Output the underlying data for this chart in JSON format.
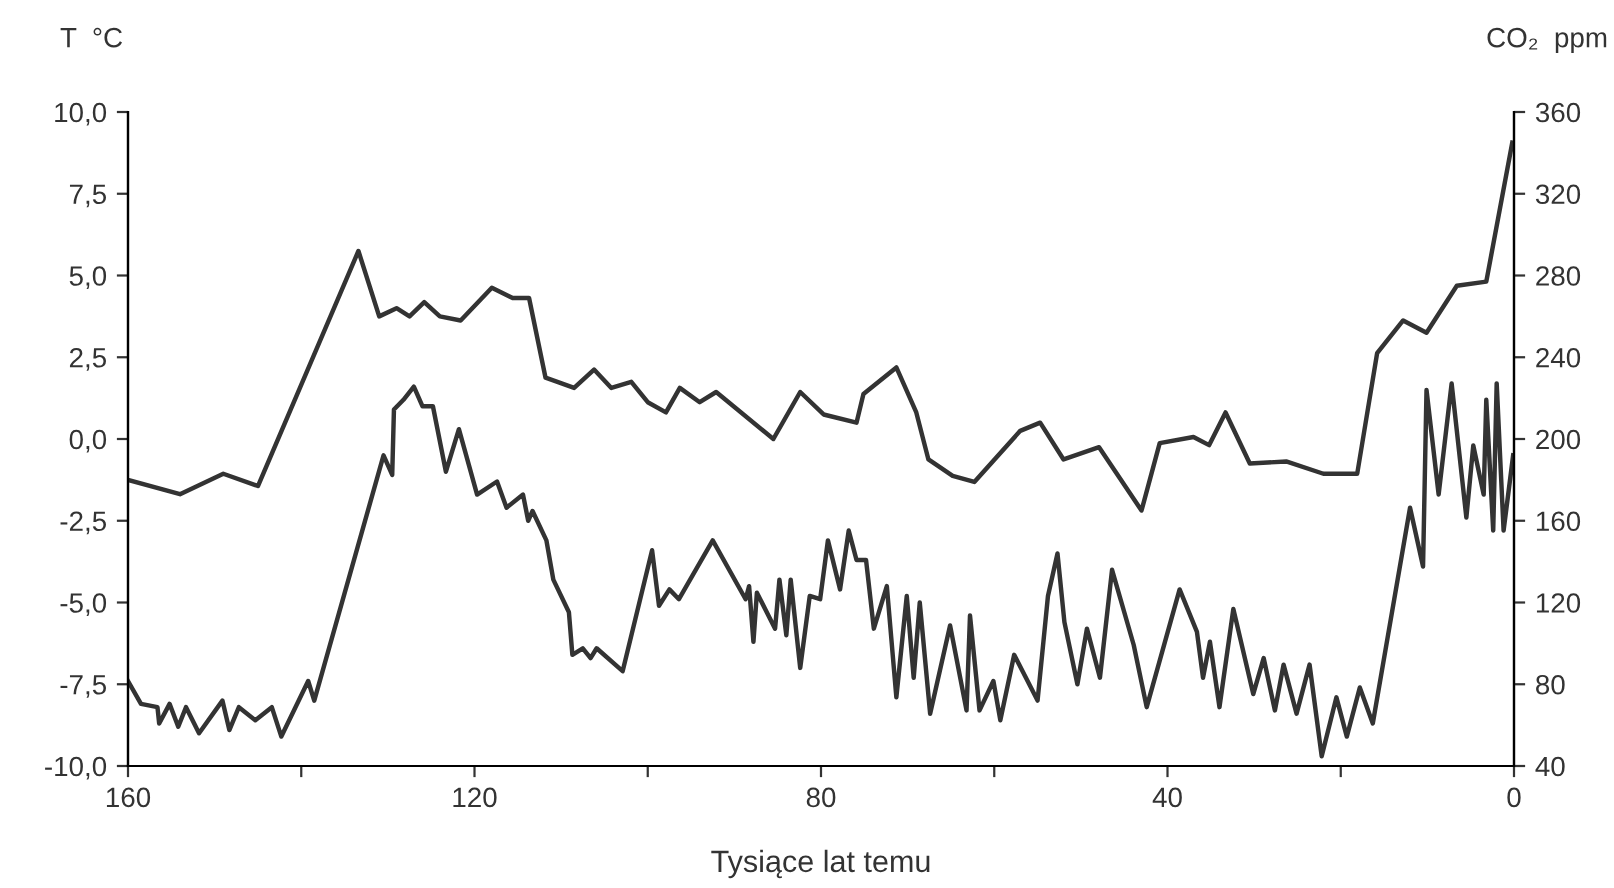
{
  "chart_data": {
    "type": "line",
    "ylabel": "T  °C",
    "y2label": "CO₂  ppm",
    "xlabel": "Tysiące lat temu",
    "xlim": [
      160,
      0
    ],
    "xticks": [
      160,
      {
        "value": 140,
        "label": null
      },
      120,
      {
        "value": 100,
        "label": null
      },
      80,
      {
        "value": 60,
        "label": null
      },
      40,
      {
        "value": 20,
        "label": null
      },
      0
    ],
    "ylim": [
      -10,
      10
    ],
    "yticks": [
      {
        "value": 10,
        "label": "10,0"
      },
      {
        "value": 7.5,
        "label": "7,5"
      },
      {
        "value": 5,
        "label": "5,0"
      },
      {
        "value": 2.5,
        "label": "2,5"
      },
      {
        "value": 0,
        "label": "0,0"
      },
      {
        "value": -2.5,
        "label": "-2,5"
      },
      {
        "value": -5,
        "label": "-5,0"
      },
      {
        "value": -7.5,
        "label": "-7,5"
      },
      {
        "value": -10,
        "label": "-10,0"
      }
    ],
    "y2lim": [
      40,
      360
    ],
    "y2ticks": [
      40,
      80,
      120,
      160,
      200,
      240,
      280,
      320,
      360
    ],
    "series": [
      {
        "color": "#333333",
        "axis": "y2",
        "x": [
          160,
          154,
          149,
          145,
          133.4,
          131,
          129,
          127.5,
          125.8,
          124,
          121.6,
          118,
          115.6,
          113.7,
          111.8,
          108.5,
          106.2,
          104.2,
          101.9,
          100,
          97.9,
          96.3,
          94,
          92.1,
          85.5,
          82.4,
          79.7,
          75.9,
          75.1,
          71.3,
          69,
          67.6,
          64.8,
          62.3,
          57,
          54.7,
          52,
          47.9,
          43,
          40.9,
          37,
          35.2,
          33.3,
          30.5,
          26.3,
          22,
          18.1,
          15.8,
          12.8,
          10.1,
          6.6,
          3.2,
          0.2
        ],
        "values": [
          180,
          173,
          183,
          177,
          292,
          260,
          264,
          260,
          267,
          260,
          258,
          274,
          269,
          269,
          230,
          225,
          234,
          225,
          228,
          218,
          213,
          225,
          218,
          223,
          200,
          223,
          212,
          208,
          222,
          235,
          213,
          190,
          182,
          179,
          204,
          208,
          190,
          196,
          165,
          198,
          201,
          197,
          213,
          188,
          189,
          183,
          183,
          242,
          258,
          252,
          275,
          277,
          345
        ]
      },
      {
        "color": "#333333",
        "axis": "y",
        "x": [
          160,
          158.5,
          156.6,
          156.4,
          155.2,
          154.2,
          153.3,
          151.8,
          149.1,
          148.3,
          147.2,
          145.3,
          143.4,
          142.3,
          139.2,
          138.5,
          130.5,
          129.5,
          129.3,
          128.2,
          127,
          126,
          124.8,
          123.3,
          121.8,
          119.7,
          117.4,
          116.3,
          114.4,
          113.8,
          113.3,
          111.7,
          110.9,
          109.1,
          108.7,
          107.5,
          106.6,
          105.9,
          102.9,
          99.5,
          98.7,
          97.5,
          96.4,
          92.5,
          88.7,
          88.3,
          87.8,
          87.4,
          85.3,
          84.8,
          84,
          83.5,
          82.4,
          81.3,
          80.1,
          79.2,
          77.8,
          76.8,
          75.9,
          74.8,
          73.9,
          72.4,
          71.3,
          70.1,
          69.3,
          68.6,
          67.4,
          65.1,
          63.2,
          62.8,
          61.7,
          60.1,
          59.3,
          57.7,
          55,
          53.8,
          52.7,
          51.9,
          50.4,
          49.3,
          47.8,
          46.4,
          43.9,
          42.4,
          38.6,
          36.6,
          35.9,
          35.1,
          34,
          32.4,
          30.1,
          28.9,
          27.6,
          26.6,
          25.1,
          23.6,
          22.2,
          20.5,
          19.3,
          17.8,
          16.3,
          12,
          10.5,
          10.1,
          8.7,
          7.2,
          5.5,
          4.7,
          3.5,
          3.2,
          2.4,
          2,
          1.2,
          0.1
        ],
        "values": [
          -7.4,
          -8.1,
          -8.2,
          -8.7,
          -8.1,
          -8.8,
          -8.2,
          -9,
          -8,
          -8.9,
          -8.2,
          -8.6,
          -8.2,
          -9.1,
          -7.4,
          -8,
          -0.5,
          -1.1,
          0.9,
          1.2,
          1.6,
          1,
          1,
          -1,
          0.3,
          -1.7,
          -1.3,
          -2.1,
          -1.7,
          -2.5,
          -2.2,
          -3.1,
          -4.3,
          -5.3,
          -6.6,
          -6.4,
          -6.7,
          -6.4,
          -7.1,
          -3.4,
          -5.1,
          -4.6,
          -4.9,
          -3.1,
          -4.9,
          -4.5,
          -6.2,
          -4.7,
          -5.8,
          -4.3,
          -6,
          -4.3,
          -7,
          -4.8,
          -4.9,
          -3.1,
          -4.6,
          -2.8,
          -3.7,
          -3.7,
          -5.8,
          -4.5,
          -7.9,
          -4.8,
          -7.3,
          -5,
          -8.4,
          -5.7,
          -8.3,
          -5.4,
          -8.3,
          -7.4,
          -8.6,
          -6.6,
          -8,
          -4.8,
          -3.5,
          -5.6,
          -7.5,
          -5.8,
          -7.3,
          -4,
          -6.3,
          -8.2,
          -4.6,
          -5.9,
          -7.3,
          -6.2,
          -8.2,
          -5.2,
          -7.8,
          -6.7,
          -8.3,
          -6.9,
          -8.4,
          -6.9,
          -9.7,
          -7.9,
          -9.1,
          -7.6,
          -8.7,
          -2.1,
          -3.9,
          1.5,
          -1.7,
          1.7,
          -2.4,
          -0.2,
          -1.7,
          1.2,
          -2.8,
          1.7,
          -2.8,
          -0.5
        ]
      }
    ]
  }
}
